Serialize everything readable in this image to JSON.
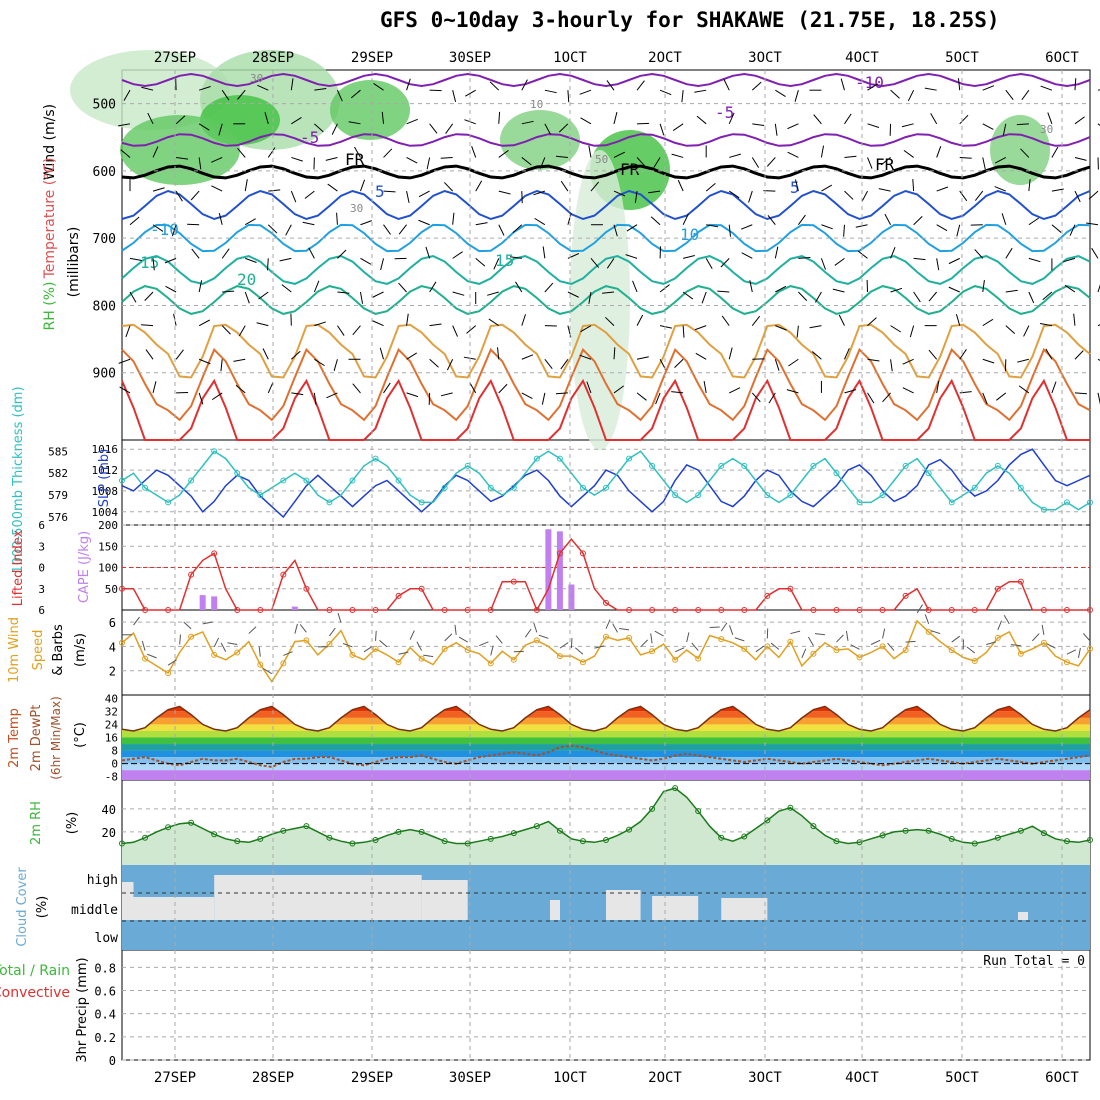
{
  "title": "GFS 0~10day 3-hourly for SHAKAWE (21.75E, 18.25S)",
  "date_labels": [
    "27SEP",
    "28SEP",
    "29SEP",
    "30SEP",
    "1OCT",
    "2OCT",
    "3OCT",
    "4OCT",
    "5OCT",
    "6OCT"
  ],
  "colors": {
    "grid": "#aaaaaa",
    "cloud": "#6aaad6",
    "cloud_gap": "#e6e6e6",
    "rh": "#3cb83c",
    "cape": "#c080f0",
    "lifted": "#e03030",
    "wind": "#e0a020",
    "slp": "#1e3fcf",
    "thickness": "#30c0c0",
    "temp_line": "#7a3010"
  },
  "chart_data": [
    {
      "panel": "upper-air",
      "type": "heatmap",
      "ylabel": "Wind (m/s) Temperature (°C) RH (%) (millibars)",
      "ylabel_parts": {
        "wind": "Wind (m/s)",
        "temp": "Temperature (°C)",
        "rh": "RH (%)",
        "units": "(millibars)"
      },
      "yticks": [
        500,
        600,
        700,
        800,
        900
      ],
      "ylim": [
        1000,
        450
      ],
      "contour_labels": [
        "-10",
        "-5",
        "-5",
        "FR",
        "FR",
        "FR",
        "-5",
        "5",
        "5",
        "-10",
        "10",
        "15",
        "15",
        "20",
        "10",
        "30",
        "30",
        "50",
        "10",
        "30"
      ],
      "isotherms": [
        -10,
        -5,
        0,
        5,
        10,
        15,
        20,
        25,
        30,
        35
      ]
    },
    {
      "panel": "thickness-slp",
      "type": "line",
      "ylabel_left": "1000-500mb Thickness (dm)",
      "ylabel_right": "SLP (mb)",
      "yticks_left": [
        576,
        579,
        582,
        585
      ],
      "yticks_right": [
        1004,
        1008,
        1012,
        1016
      ],
      "series": [
        {
          "name": "SLP (mb)",
          "values": [
            1009,
            1008,
            1010,
            1012,
            1011,
            1009,
            1007,
            1004,
            1006,
            1009,
            1011,
            1010,
            1007,
            1005,
            1003,
            1006,
            1009,
            1011,
            1009,
            1007,
            1005,
            1007,
            1009,
            1010,
            1008,
            1006,
            1004,
            1006,
            1009,
            1011,
            1010,
            1008,
            1006,
            1007,
            1009,
            1011,
            1012,
            1010,
            1007,
            1005,
            1007,
            1009,
            1012,
            1011,
            1008,
            1006,
            1004,
            1006,
            1010,
            1013,
            1012,
            1009,
            1006,
            1005,
            1007,
            1010,
            1012,
            1011,
            1008,
            1006,
            1005,
            1007,
            1009,
            1012,
            1013,
            1011,
            1008,
            1006,
            1007,
            1009,
            1013,
            1014,
            1012,
            1009,
            1007,
            1008,
            1010,
            1013,
            1015,
            1016,
            1013,
            1010,
            1009,
            1010,
            1011
          ]
        },
        {
          "name": "Thickness (dm)",
          "values": [
            581,
            582,
            580,
            579,
            578,
            579,
            581,
            583,
            585,
            584,
            582,
            580,
            579,
            580,
            581,
            582,
            581,
            579,
            578,
            579,
            581,
            583,
            584,
            583,
            581,
            579,
            578,
            578,
            580,
            582,
            583,
            582,
            580,
            579,
            580,
            582,
            584,
            585,
            584,
            582,
            580,
            579,
            580,
            582,
            584,
            585,
            583,
            581,
            579,
            578,
            579,
            581,
            583,
            584,
            583,
            581,
            579,
            578,
            579,
            581,
            583,
            584,
            582,
            580,
            578,
            578,
            579,
            581,
            583,
            584,
            582,
            580,
            578,
            579,
            580,
            582,
            583,
            582,
            580,
            578,
            577,
            577,
            578,
            577,
            578
          ]
        }
      ]
    },
    {
      "panel": "lifted-cape",
      "type": "bar",
      "ylabel_left": "Lifted Index",
      "ylabel_right": "CAPE (J/kg)",
      "yticks_left": [
        -6,
        -3,
        0,
        3,
        6
      ],
      "yticks_right": [
        50,
        100,
        150,
        200
      ],
      "cape_values": [
        0,
        0,
        0,
        0,
        0,
        0,
        0,
        35,
        32,
        0,
        0,
        0,
        0,
        0,
        0,
        8,
        0,
        0,
        0,
        0,
        0,
        0,
        0,
        0,
        0,
        0,
        0,
        0,
        0,
        0,
        0,
        0,
        0,
        0,
        0,
        0,
        0,
        190,
        185,
        60,
        0,
        0,
        0,
        0,
        0,
        0,
        0,
        0,
        0,
        0,
        0,
        0,
        0,
        0,
        0,
        0,
        0,
        0,
        0,
        0,
        0,
        0,
        0,
        0,
        0,
        0,
        0,
        0,
        0,
        0,
        0,
        0,
        0,
        0,
        0,
        0,
        0,
        0,
        0,
        0,
        0,
        0,
        0,
        0,
        0
      ],
      "lifted_values": [
        3,
        3,
        6,
        6,
        6,
        6,
        1,
        -1,
        -2,
        3,
        6,
        6,
        6,
        6,
        1,
        -1,
        3,
        6,
        6,
        6,
        6,
        6,
        6,
        6,
        4,
        3,
        3,
        6,
        6,
        6,
        6,
        6,
        6,
        2,
        2,
        2,
        6,
        3,
        -2,
        -4,
        -2,
        3,
        5,
        6,
        6,
        6,
        6,
        6,
        6,
        6,
        6,
        6,
        6,
        6,
        6,
        6,
        4,
        3,
        3,
        6,
        6,
        6,
        6,
        6,
        6,
        6,
        6,
        6,
        4,
        3,
        6,
        6,
        6,
        6,
        6,
        6,
        3,
        2,
        2,
        6,
        6,
        6,
        6,
        6,
        6
      ]
    },
    {
      "panel": "wind10m",
      "type": "line",
      "ylabel": "10m Wind Speed & Barbs (m/s)",
      "ylabel_parts": {
        "wind": "10m Wind",
        "speed": "Speed",
        "barbs": "& Barbs",
        "units": "(m/s)"
      },
      "yticks": [
        2,
        4,
        6
      ],
      "values": [
        4.3,
        5.1,
        3.0,
        2.4,
        1.8,
        3.5,
        4.8,
        5.2,
        3.3,
        2.9,
        3.5,
        4.4,
        2.5,
        1.1,
        2.6,
        4.4,
        4.5,
        3.3,
        4.2,
        5.3,
        3.3,
        2.9,
        3.8,
        3.3,
        2.7,
        3.9,
        3.0,
        2.5,
        3.8,
        4.3,
        3.7,
        3.4,
        2.6,
        3.6,
        2.9,
        4.1,
        4.5,
        4.0,
        3.2,
        3.2,
        2.7,
        3.2,
        4.8,
        4.5,
        4.7,
        3.3,
        3.6,
        4.2,
        2.9,
        3.7,
        3.0,
        4.9,
        4.6,
        4.3,
        3.8,
        2.9,
        4.0,
        3.1,
        4.4,
        2.4,
        3.4,
        4.3,
        3.7,
        3.8,
        3.1,
        3.5,
        4.0,
        3.0,
        3.7,
        6.1,
        5.2,
        4.4,
        3.7,
        3.1,
        2.8,
        3.5,
        4.7,
        5.2,
        3.4,
        3.8,
        4.3,
        3.2,
        2.7,
        2.4,
        3.8
      ]
    },
    {
      "panel": "temperature",
      "type": "area",
      "ylabel": "2m Temp 2m DewPt (6hr Min/Max) (°C)",
      "ylabel_parts": {
        "temp": "2m Temp",
        "dewpt": "2m DewPt",
        "minmax": "(6hr Min/Max)",
        "units": "(°C)"
      },
      "yticks": [
        -8,
        0,
        8,
        16,
        24,
        32,
        40
      ],
      "tick_labels": [
        "-8",
        "0",
        "8",
        "16",
        "24",
        "32",
        "40"
      ],
      "temp": [
        21,
        20,
        22,
        28,
        33,
        35,
        30,
        24,
        21,
        20,
        22,
        28,
        33,
        35,
        30,
        24,
        21,
        20,
        22,
        28,
        33,
        35,
        30,
        24,
        21,
        20,
        22,
        28,
        33,
        35,
        30,
        24,
        21,
        20,
        22,
        28,
        33,
        35,
        30,
        24,
        21,
        20,
        22,
        28,
        33,
        35,
        30,
        24,
        21,
        20,
        22,
        28,
        33,
        35,
        30,
        24,
        21,
        20,
        22,
        28,
        33,
        35,
        30,
        24,
        21,
        20,
        22,
        28,
        33,
        35,
        30,
        24,
        21,
        20,
        22,
        28,
        33,
        35,
        30,
        24,
        21,
        20,
        22,
        28,
        33
      ],
      "dewpoint": [
        2,
        3,
        4,
        2,
        0,
        -1,
        1,
        3,
        2,
        2,
        3,
        1,
        -1,
        -2,
        1,
        3,
        3,
        4,
        4,
        2,
        0,
        -1,
        1,
        3,
        4,
        4,
        5,
        3,
        1,
        0,
        2,
        4,
        5,
        6,
        7,
        6,
        5,
        7,
        10,
        11,
        10,
        8,
        6,
        5,
        4,
        3,
        2,
        3,
        5,
        6,
        5,
        4,
        3,
        2,
        1,
        2,
        3,
        2,
        1,
        0,
        1,
        2,
        3,
        2,
        1,
        0,
        -1,
        0,
        1,
        2,
        3,
        2,
        1,
        0,
        1,
        2,
        3,
        2,
        1,
        0,
        1,
        2,
        3,
        4,
        5
      ]
    },
    {
      "panel": "rh2m",
      "type": "area",
      "ylabel": "2m RH (%)",
      "ylabel_parts": {
        "rh": "2m RH",
        "units": "(%)"
      },
      "yticks": [
        20,
        40
      ],
      "values": [
        10,
        11,
        15,
        20,
        24,
        27,
        28,
        23,
        18,
        14,
        12,
        11,
        14,
        18,
        21,
        23,
        25,
        20,
        15,
        12,
        10,
        11,
        13,
        17,
        20,
        22,
        20,
        16,
        12,
        10,
        10,
        12,
        14,
        16,
        19,
        22,
        25,
        29,
        21,
        14,
        12,
        11,
        13,
        17,
        22,
        29,
        40,
        55,
        58,
        50,
        38,
        25,
        15,
        12,
        16,
        23,
        30,
        38,
        41,
        34,
        25,
        17,
        12,
        10,
        11,
        14,
        17,
        20,
        21,
        22,
        21,
        18,
        14,
        11,
        10,
        12,
        15,
        18,
        21,
        25,
        19,
        14,
        12,
        11,
        13
      ]
    },
    {
      "panel": "cloud",
      "type": "area",
      "ylabel": "Cloud Cover (%)",
      "ylabel_parts": {
        "cloud": "Cloud Cover",
        "units": "(%)"
      },
      "levels": [
        "high",
        "middle",
        "low"
      ],
      "middle_gaps": [
        [
          0,
          1,
          38
        ],
        [
          1,
          8,
          23
        ],
        [
          8,
          26,
          45
        ],
        [
          26,
          30,
          40
        ],
        [
          42,
          45,
          30
        ],
        [
          46,
          50,
          24
        ],
        [
          52,
          56,
          22
        ]
      ]
    },
    {
      "panel": "precip",
      "type": "bar",
      "ylabel": "3hr Precip (mm)",
      "legend": [
        "Total / Rain",
        "Convective"
      ],
      "run_total_label": "Run Total = 0",
      "yticks": [
        0,
        0.2,
        0.4,
        0.6,
        0.8
      ],
      "tick_labels": [
        "0",
        "0.2",
        "0.4",
        "0.6",
        "0.8"
      ],
      "values": []
    }
  ]
}
